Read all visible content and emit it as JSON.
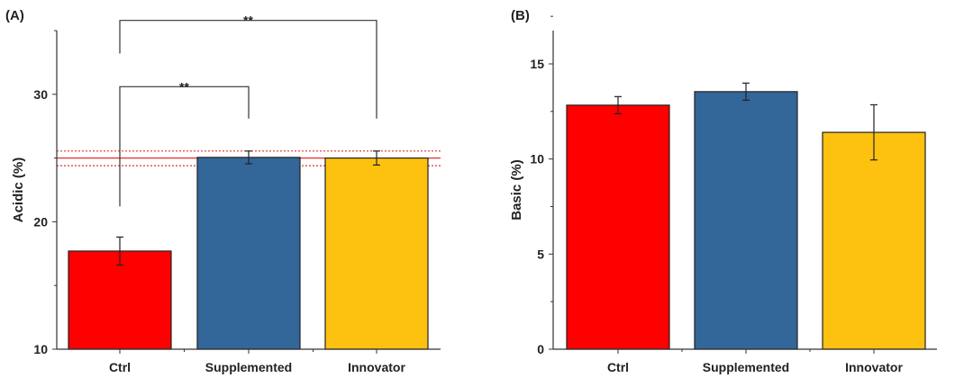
{
  "chart_data": [
    {
      "type": "bar",
      "panel_label": "(A)",
      "ylabel": "Acidic (%)",
      "xlabel": "",
      "ylim": [
        10,
        35
      ],
      "yticks": [
        10,
        20,
        30
      ],
      "categories": [
        "Ctrl",
        "Supplemented",
        "Innovator"
      ],
      "values": [
        17.7,
        25.05,
        25.0
      ],
      "errors": [
        1.1,
        0.5,
        0.55
      ],
      "colors": [
        "#ff0000",
        "#336699",
        "#fdc110"
      ],
      "grid": false,
      "reference_lines": [
        {
          "y": 25.0,
          "style": "solid",
          "color": "#e03030"
        },
        {
          "y": 25.55,
          "style": "dotted",
          "color": "#e03030"
        },
        {
          "y": 24.4,
          "style": "dotted",
          "color": "#e03030"
        }
      ],
      "significance": [
        {
          "from": "Ctrl",
          "to": "Supplemented",
          "label": "**",
          "y": 30.6,
          "left_drop": 21.2,
          "right_drop": 28.1
        },
        {
          "from": "Ctrl",
          "to": "Innovator",
          "label": "**",
          "y": 35.8,
          "left_drop": 33.2,
          "right_drop": 28.1
        }
      ]
    },
    {
      "type": "bar",
      "panel_label": "(B)",
      "ylabel": "Basic (%)",
      "xlabel": "",
      "ylim": [
        0,
        16.75
      ],
      "yticks": [
        0,
        5,
        10,
        15
      ],
      "categories": [
        "Ctrl",
        "Supplemented",
        "Innovator"
      ],
      "values": [
        12.83,
        13.54,
        11.4
      ],
      "errors": [
        0.45,
        0.45,
        1.45
      ],
      "colors": [
        "#ff0000",
        "#336699",
        "#fdc110"
      ],
      "grid": false
    }
  ]
}
